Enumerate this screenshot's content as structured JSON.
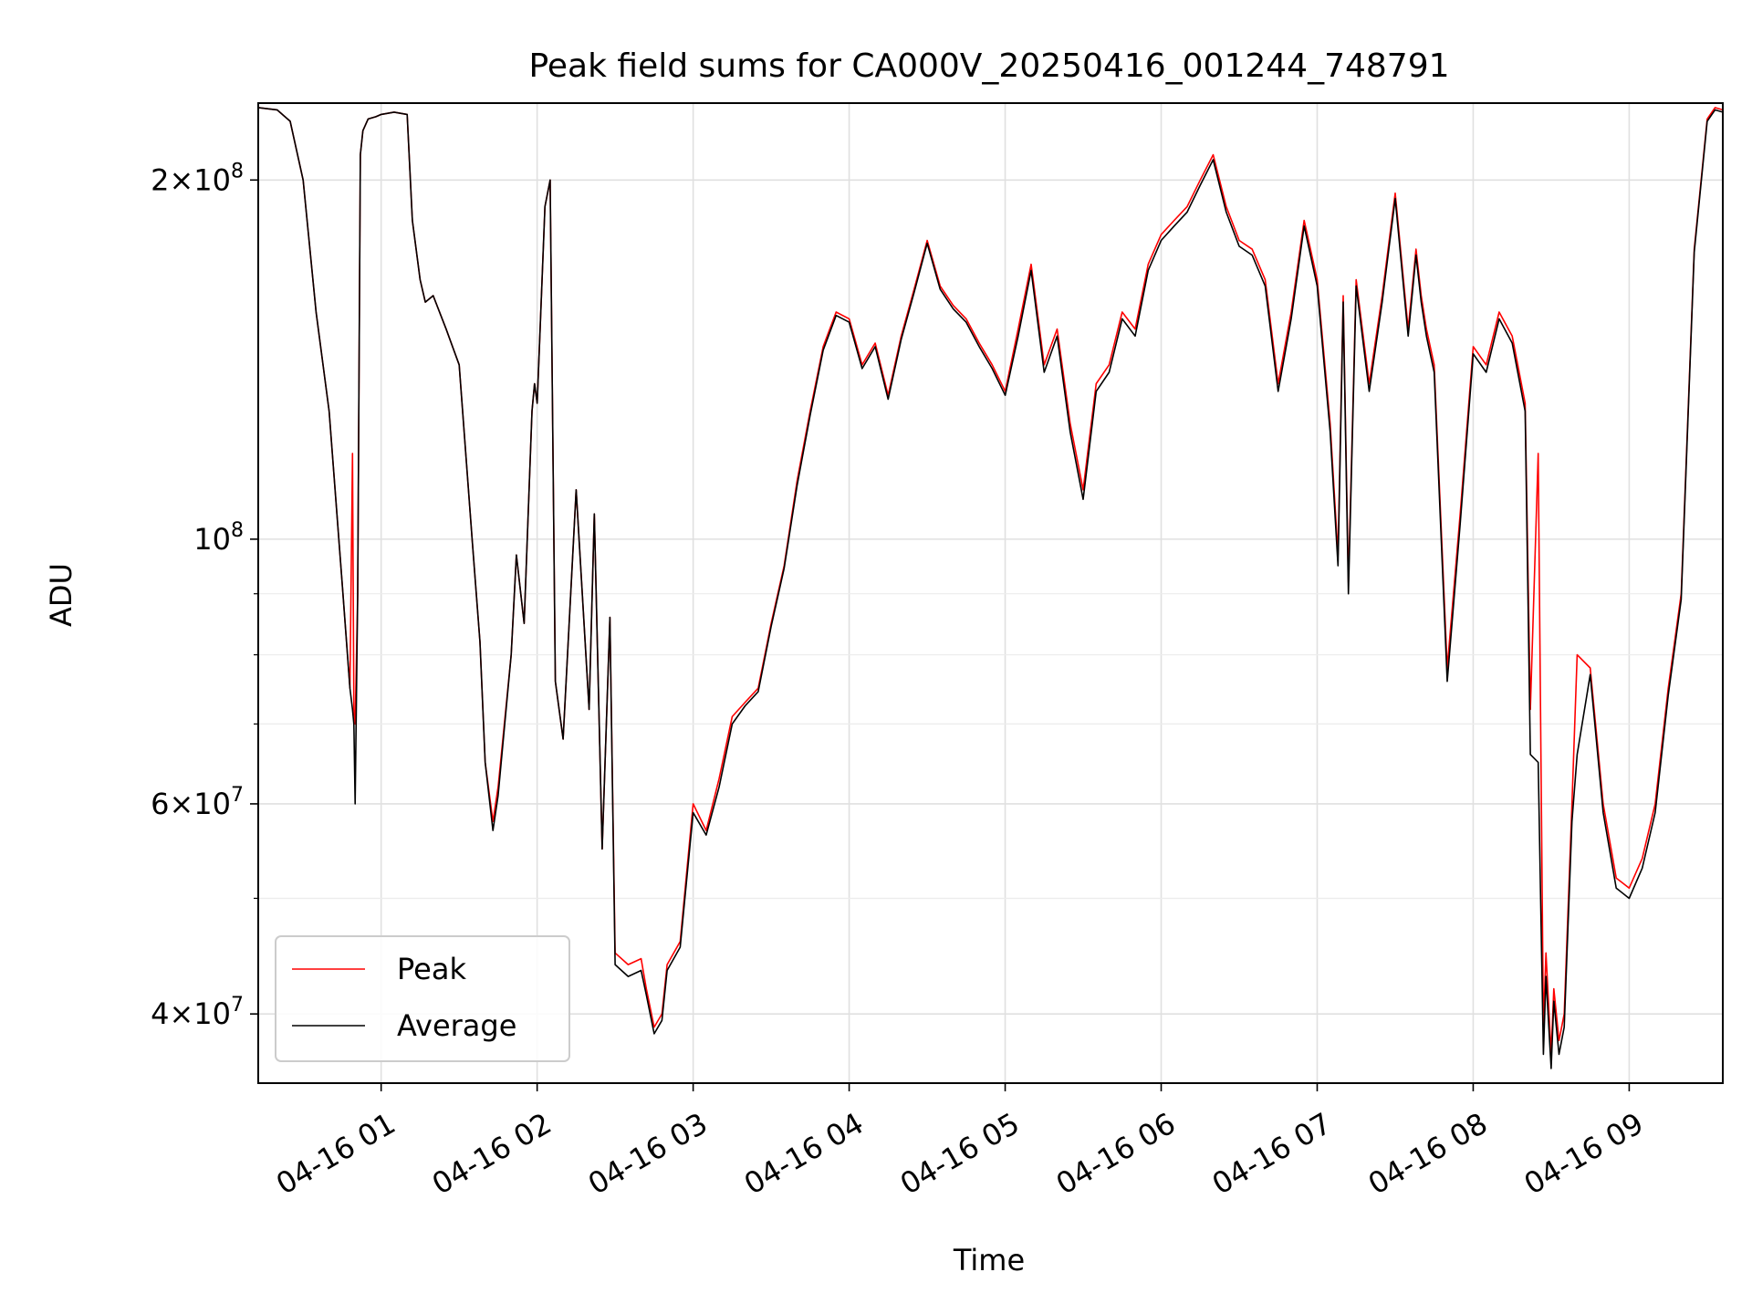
{
  "chart_data": {
    "type": "line",
    "title": "Peak field sums for CA000V_20250416_001244_748791",
    "xlabel": "Time",
    "ylabel": "ADU",
    "yscale": "log",
    "xlim": [
      "2025-04-16 00:12:44",
      "2025-04-16 09:36:00"
    ],
    "ylim": [
      35000000,
      232000000
    ],
    "grid": true,
    "legend_position": "lower-left",
    "x_ticks": [
      {
        "t": "2025-04-16 01:00",
        "label": "04-16 01"
      },
      {
        "t": "2025-04-16 02:00",
        "label": "04-16 02"
      },
      {
        "t": "2025-04-16 03:00",
        "label": "04-16 03"
      },
      {
        "t": "2025-04-16 04:00",
        "label": "04-16 04"
      },
      {
        "t": "2025-04-16 05:00",
        "label": "04-16 05"
      },
      {
        "t": "2025-04-16 06:00",
        "label": "04-16 06"
      },
      {
        "t": "2025-04-16 07:00",
        "label": "04-16 07"
      },
      {
        "t": "2025-04-16 08:00",
        "label": "04-16 08"
      },
      {
        "t": "2025-04-16 09:00",
        "label": "04-16 09"
      }
    ],
    "y_major_ticks": [
      {
        "value": 40000000,
        "mantissa": "4",
        "exp": "7"
      },
      {
        "value": 60000000,
        "mantissa": "6",
        "exp": "7"
      },
      {
        "value": 100000000,
        "mantissa": "",
        "exp": "8"
      },
      {
        "value": 200000000,
        "mantissa": "2",
        "exp": "8"
      }
    ],
    "y_minor_ticks": [
      50000000,
      70000000,
      80000000,
      90000000,
      300000000
    ],
    "series": [
      {
        "name": "Peak",
        "color": "#ff0000",
        "x": [
          "00:12:44",
          "00:20",
          "00:25",
          "00:30",
          "00:35",
          "00:40",
          "00:45",
          "00:48",
          "00:49",
          "00:49:30",
          "00:50",
          "00:51",
          "00:52",
          "00:53",
          "00:55",
          "00:58",
          "01:00",
          "01:05",
          "01:10",
          "01:12",
          "01:15",
          "01:17",
          "01:20",
          "01:25",
          "01:30",
          "01:35",
          "01:38",
          "01:40",
          "01:43",
          "01:45",
          "01:50",
          "01:52",
          "01:55",
          "01:58",
          "01:59",
          "02:00",
          "02:03",
          "02:05",
          "02:07",
          "02:10",
          "02:15",
          "02:20",
          "02:22",
          "02:25",
          "02:28",
          "02:30",
          "02:35",
          "02:40",
          "02:42",
          "02:45",
          "02:48",
          "02:50",
          "02:55",
          "03:00",
          "03:05",
          "03:10",
          "03:15",
          "03:20",
          "03:25",
          "03:30",
          "03:35",
          "03:40",
          "03:45",
          "03:50",
          "03:55",
          "04:00",
          "04:05",
          "04:10",
          "04:15",
          "04:20",
          "04:25",
          "04:30",
          "04:35",
          "04:40",
          "04:45",
          "04:50",
          "04:55",
          "05:00",
          "05:05",
          "05:10",
          "05:15",
          "05:20",
          "05:25",
          "05:30",
          "05:35",
          "05:40",
          "05:45",
          "05:50",
          "05:55",
          "06:00",
          "06:05",
          "06:10",
          "06:15",
          "06:20",
          "06:25",
          "06:30",
          "06:35",
          "06:40",
          "06:45",
          "06:50",
          "06:55",
          "07:00",
          "07:05",
          "07:08",
          "07:10",
          "07:12",
          "07:15",
          "07:20",
          "07:25",
          "07:30",
          "07:35",
          "07:38",
          "07:40",
          "07:42",
          "07:45",
          "07:50",
          "07:55",
          "08:00",
          "08:05",
          "08:10",
          "08:15",
          "08:20",
          "08:22",
          "08:25",
          "08:27",
          "08:28",
          "08:30",
          "08:31",
          "08:33",
          "08:35",
          "08:38",
          "08:40",
          "08:45",
          "08:50",
          "08:55",
          "09:00",
          "09:05",
          "09:10",
          "09:15",
          "09:20",
          "09:25",
          "09:30",
          "09:33",
          "09:36"
        ],
        "y": [
          230000000,
          229000000,
          224000000,
          200000000,
          155000000,
          128000000,
          92000000,
          75000000,
          118000000,
          72000000,
          70000000,
          90000000,
          210000000,
          220000000,
          225000000,
          226000000,
          227000000,
          228000000,
          227000000,
          185000000,
          165000000,
          158000000,
          160000000,
          150000000,
          140000000,
          100000000,
          82000000,
          65000000,
          58000000,
          62000000,
          80000000,
          97000000,
          85000000,
          128000000,
          135000000,
          130000000,
          190000000,
          200000000,
          76000000,
          68000000,
          110000000,
          72000000,
          105000000,
          55000000,
          86000000,
          45000000,
          44000000,
          44500000,
          42000000,
          39000000,
          40000000,
          44000000,
          46000000,
          60000000,
          57000000,
          63000000,
          71000000,
          73000000,
          75000000,
          85000000,
          95000000,
          112000000,
          128000000,
          145000000,
          155000000,
          153000000,
          140000000,
          146000000,
          132000000,
          148000000,
          162000000,
          178000000,
          163000000,
          157000000,
          153000000,
          146000000,
          140000000,
          133000000,
          150000000,
          170000000,
          140000000,
          150000000,
          125000000,
          110000000,
          135000000,
          140000000,
          155000000,
          150000000,
          170000000,
          180000000,
          185000000,
          190000000,
          200000000,
          210000000,
          190000000,
          178000000,
          175000000,
          165000000,
          135000000,
          155000000,
          185000000,
          165000000,
          125000000,
          97000000,
          160000000,
          92000000,
          165000000,
          135000000,
          160000000,
          195000000,
          150000000,
          175000000,
          160000000,
          150000000,
          140000000,
          78000000,
          105000000,
          145000000,
          140000000,
          155000000,
          148000000,
          130000000,
          72000000,
          118000000,
          39000000,
          45000000,
          37000000,
          42000000,
          38000000,
          40000000,
          60000000,
          80000000,
          78000000,
          60000000,
          52000000,
          51000000,
          54000000,
          60000000,
          75000000,
          90000000,
          175000000,
          225000000,
          230000000,
          229000000
        ]
      },
      {
        "name": "Average",
        "color": "#000000",
        "x": [
          "00:12:44",
          "00:20",
          "00:25",
          "00:30",
          "00:35",
          "00:40",
          "00:45",
          "00:48",
          "00:49",
          "00:49:30",
          "00:50",
          "00:51",
          "00:52",
          "00:53",
          "00:55",
          "00:58",
          "01:00",
          "01:05",
          "01:10",
          "01:12",
          "01:15",
          "01:17",
          "01:20",
          "01:25",
          "01:30",
          "01:35",
          "01:38",
          "01:40",
          "01:43",
          "01:45",
          "01:50",
          "01:52",
          "01:55",
          "01:58",
          "01:59",
          "02:00",
          "02:03",
          "02:05",
          "02:07",
          "02:10",
          "02:15",
          "02:20",
          "02:22",
          "02:25",
          "02:28",
          "02:30",
          "02:35",
          "02:40",
          "02:42",
          "02:45",
          "02:48",
          "02:50",
          "02:55",
          "03:00",
          "03:05",
          "03:10",
          "03:15",
          "03:20",
          "03:25",
          "03:30",
          "03:35",
          "03:40",
          "03:45",
          "03:50",
          "03:55",
          "04:00",
          "04:05",
          "04:10",
          "04:15",
          "04:20",
          "04:25",
          "04:30",
          "04:35",
          "04:40",
          "04:45",
          "04:50",
          "04:55",
          "05:00",
          "05:05",
          "05:10",
          "05:15",
          "05:20",
          "05:25",
          "05:30",
          "05:35",
          "05:40",
          "05:45",
          "05:50",
          "05:55",
          "06:00",
          "06:05",
          "06:10",
          "06:15",
          "06:20",
          "06:25",
          "06:30",
          "06:35",
          "06:40",
          "06:45",
          "06:50",
          "06:55",
          "07:00",
          "07:05",
          "07:08",
          "07:10",
          "07:12",
          "07:15",
          "07:20",
          "07:25",
          "07:30",
          "07:35",
          "07:38",
          "07:40",
          "07:42",
          "07:45",
          "07:50",
          "07:55",
          "08:00",
          "08:05",
          "08:10",
          "08:15",
          "08:20",
          "08:22",
          "08:25",
          "08:27",
          "08:28",
          "08:30",
          "08:31",
          "08:33",
          "08:35",
          "08:38",
          "08:40",
          "08:45",
          "08:50",
          "08:55",
          "09:00",
          "09:05",
          "09:10",
          "09:15",
          "09:20",
          "09:25",
          "09:30",
          "09:33",
          "09:36"
        ],
        "y": [
          230000000,
          229000000,
          224000000,
          200000000,
          155000000,
          128000000,
          92000000,
          75000000,
          72000000,
          70000000,
          60000000,
          90000000,
          210000000,
          220000000,
          225000000,
          226000000,
          227000000,
          228000000,
          227000000,
          185000000,
          165000000,
          158000000,
          160000000,
          150000000,
          140000000,
          100000000,
          82000000,
          65000000,
          57000000,
          61000000,
          80000000,
          97000000,
          85000000,
          128000000,
          135000000,
          130000000,
          190000000,
          200000000,
          76000000,
          68000000,
          110000000,
          72000000,
          105000000,
          55000000,
          86000000,
          44000000,
          43000000,
          43500000,
          41500000,
          38500000,
          39500000,
          43500000,
          45500000,
          59000000,
          56500000,
          62000000,
          70000000,
          72500000,
          74500000,
          84500000,
          94500000,
          111000000,
          127000000,
          144000000,
          154000000,
          152000000,
          139000000,
          145000000,
          131000000,
          147000000,
          161000000,
          177000000,
          162000000,
          156000000,
          152000000,
          145000000,
          139000000,
          132000000,
          148000000,
          168000000,
          138000000,
          148000000,
          123000000,
          108000000,
          133000000,
          138000000,
          153000000,
          148000000,
          168000000,
          178000000,
          183000000,
          188000000,
          198000000,
          208000000,
          188000000,
          176000000,
          173000000,
          163000000,
          133000000,
          153000000,
          183000000,
          163000000,
          123000000,
          95000000,
          158000000,
          90000000,
          163000000,
          133000000,
          158000000,
          193000000,
          148000000,
          173000000,
          158000000,
          148000000,
          138000000,
          76000000,
          103000000,
          143000000,
          138000000,
          153000000,
          146000000,
          128000000,
          66000000,
          65000000,
          37000000,
          43000000,
          36000000,
          41000000,
          37000000,
          39000000,
          58000000,
          66000000,
          77000000,
          59000000,
          51000000,
          50000000,
          53000000,
          59000000,
          74000000,
          89000000,
          174000000,
          224000000,
          229000000,
          228000000
        ]
      }
    ]
  }
}
